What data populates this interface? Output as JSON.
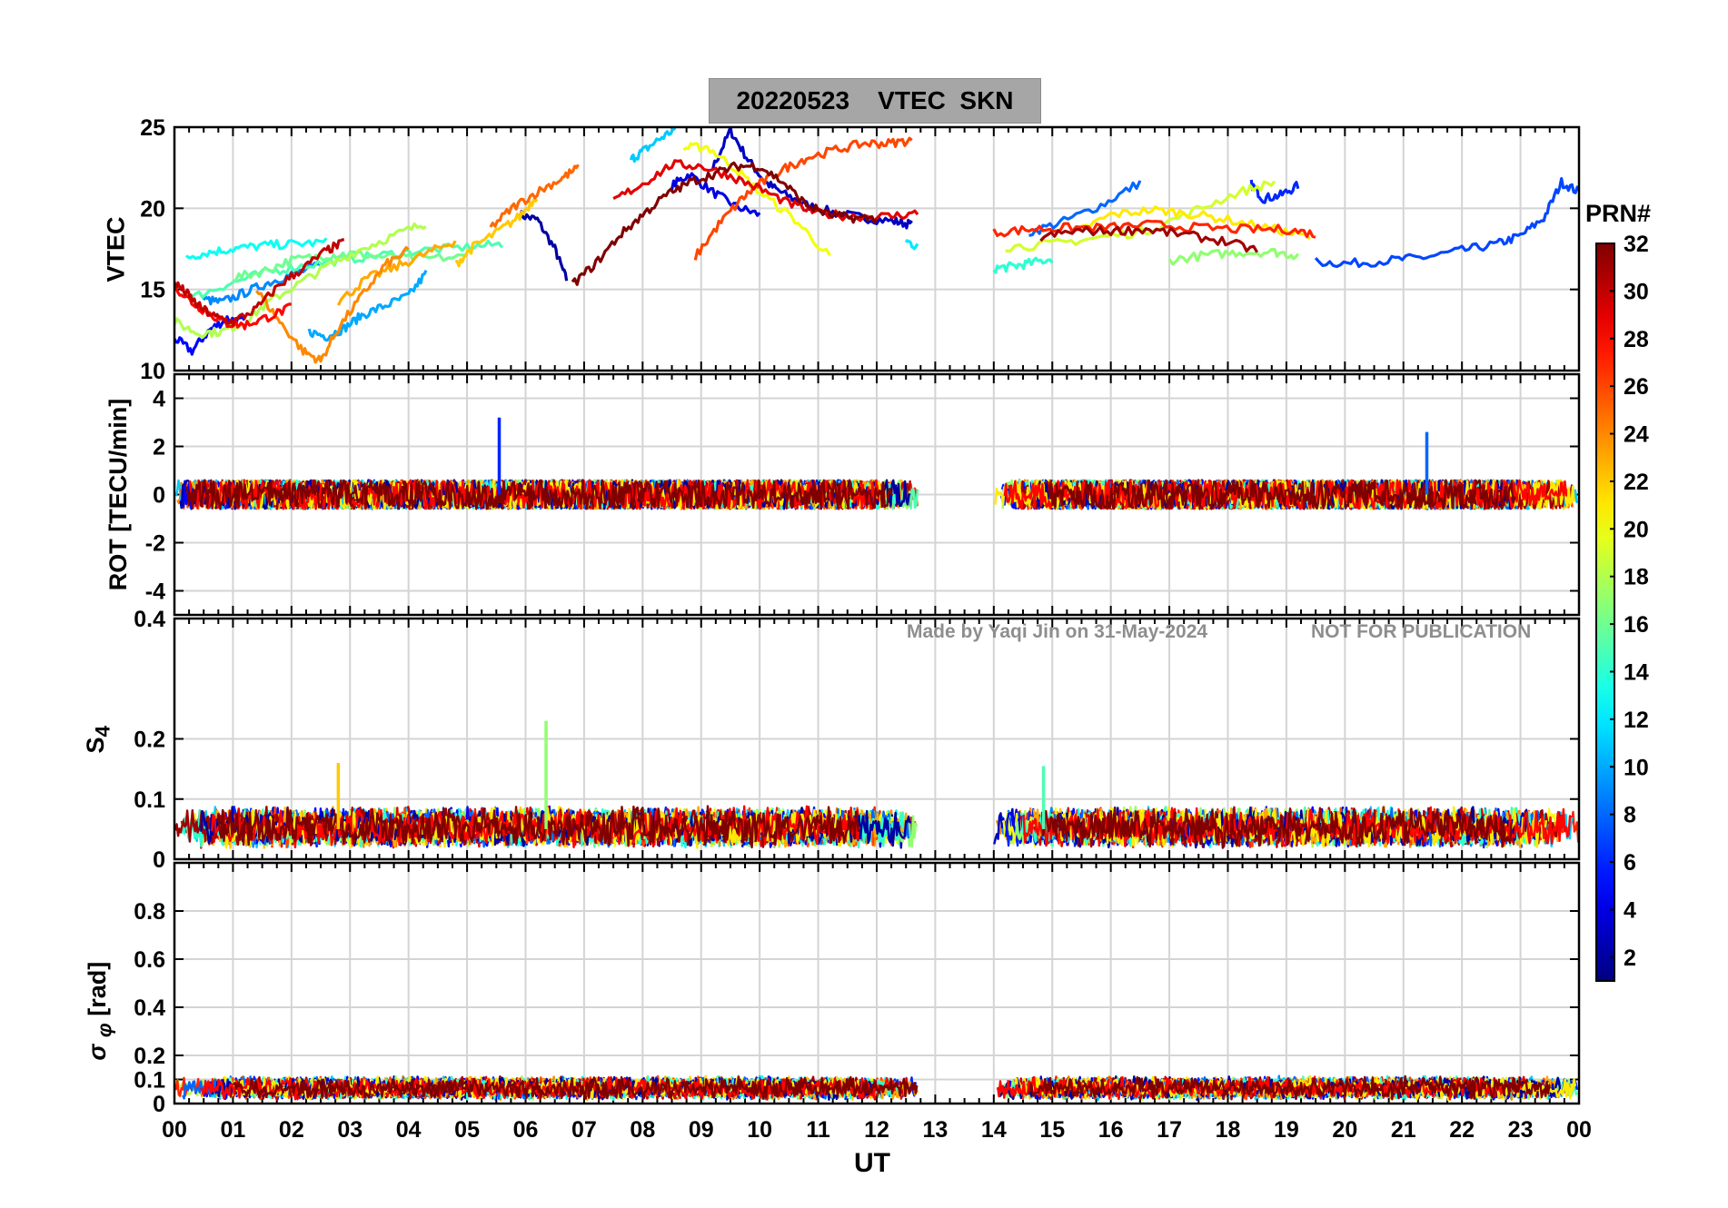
{
  "title": "20220523    VTEC  SKN",
  "xlabel": "UT",
  "colorbar_label": "PRN#",
  "watermark": {
    "author": "Made by Yaqi Jin on 31-May-2024",
    "notice": "NOT FOR PUBLICATION"
  },
  "x_ticks": [
    "00",
    "01",
    "02",
    "03",
    "04",
    "05",
    "06",
    "07",
    "08",
    "09",
    "10",
    "11",
    "12",
    "13",
    "14",
    "15",
    "16",
    "17",
    "18",
    "19",
    "20",
    "21",
    "22",
    "23",
    "00"
  ],
  "colorbar": {
    "ticks": [
      2,
      4,
      6,
      8,
      10,
      12,
      14,
      16,
      18,
      20,
      22,
      24,
      26,
      28,
      30,
      32
    ],
    "range": [
      1,
      32
    ],
    "colormap": "jet"
  },
  "chart_data": [
    {
      "type": "line",
      "panel": "vtec",
      "ylabel": "VTEC",
      "xlim": [
        0,
        24
      ],
      "ylim": [
        10,
        25
      ],
      "yticks": [
        10,
        15,
        20,
        25
      ],
      "grid": true,
      "series": [
        {
          "prn": 2,
          "x": [
            5.9,
            6.2,
            6.5,
            6.7
          ],
          "y": [
            19.6,
            19.3,
            17.5,
            15.6
          ]
        },
        {
          "prn": 3,
          "x": [
            9.2,
            9.5,
            9.8,
            10.1,
            10.4,
            10.8,
            11.3,
            11.8,
            12.3,
            12.6
          ],
          "y": [
            22.5,
            24.8,
            23.0,
            21.6,
            20.9,
            20.2,
            19.7,
            19.4,
            19.2,
            19.0
          ]
        },
        {
          "prn": 4,
          "x": [
            8.5,
            8.8,
            9.2,
            9.6,
            10.0
          ],
          "y": [
            21.4,
            22.1,
            21.0,
            20.1,
            19.6
          ]
        },
        {
          "prn": 5,
          "x": [
            0.0,
            0.3,
            0.6,
            0.9,
            1.2
          ],
          "y": [
            12.0,
            11.2,
            12.5,
            13.2,
            13.0
          ]
        },
        {
          "prn": 6,
          "x": [
            18.4,
            18.6,
            18.9,
            19.2
          ],
          "y": [
            21.5,
            20.6,
            20.8,
            21.4
          ]
        },
        {
          "prn": 7,
          "x": [
            19.5,
            20.1,
            20.8,
            21.4,
            22.0,
            22.6,
            23.0,
            23.4,
            23.7,
            24.0
          ],
          "y": [
            16.7,
            16.6,
            16.8,
            17.0,
            17.4,
            17.8,
            18.3,
            19.4,
            21.6,
            21.0
          ]
        },
        {
          "prn": 8,
          "x": [
            14.6,
            15.2,
            15.9,
            16.5
          ],
          "y": [
            18.5,
            19.2,
            20.3,
            21.6
          ]
        },
        {
          "prn": 9,
          "x": [
            0.5,
            0.8,
            1.2,
            1.6,
            2.0,
            2.5
          ],
          "y": [
            14.4,
            14.2,
            14.8,
            15.4,
            15.9,
            16.5
          ]
        },
        {
          "prn": 10,
          "x": [
            2.3,
            2.6,
            2.9,
            3.2,
            3.6,
            4.0,
            4.3
          ],
          "y": [
            12.4,
            12.1,
            12.6,
            13.4,
            14.0,
            14.6,
            16.0
          ]
        },
        {
          "prn": 11,
          "x": [
            7.8,
            8.0,
            8.3,
            8.6
          ],
          "y": [
            23.0,
            23.5,
            24.3,
            25.0
          ]
        },
        {
          "prn": 12,
          "x": [
            12.5,
            12.7
          ],
          "y": [
            18.0,
            17.6
          ]
        },
        {
          "prn": 13,
          "x": [
            0.2,
            0.6,
            1.0,
            1.5,
            2.0,
            2.6
          ],
          "y": [
            17.0,
            17.3,
            17.5,
            17.7,
            17.8,
            17.9
          ]
        },
        {
          "prn": 14,
          "x": [
            14.0,
            14.3,
            14.6,
            15.0
          ],
          "y": [
            16.3,
            16.4,
            16.6,
            16.9
          ]
        },
        {
          "prn": 15,
          "x": [
            0.3,
            0.9,
            1.5,
            2.1,
            2.8,
            3.5,
            4.2,
            5.0,
            5.6
          ],
          "y": [
            14.5,
            15.3,
            16.0,
            16.4,
            16.8,
            17.1,
            17.4,
            17.6,
            17.8
          ]
        },
        {
          "prn": 16,
          "x": [
            1.0,
            1.5,
            2.0,
            2.6,
            3.0,
            3.6,
            4.2,
            5.0
          ],
          "y": [
            15.7,
            16.1,
            16.8,
            17.1,
            17.2,
            17.0,
            16.9,
            17.0
          ]
        },
        {
          "prn": 17,
          "x": [
            17.0,
            17.6,
            18.2,
            18.8,
            19.2
          ],
          "y": [
            16.8,
            17.1,
            17.3,
            17.3,
            17.1
          ]
        },
        {
          "prn": 18,
          "x": [
            0.0,
            0.4,
            0.8,
            1.2,
            1.6,
            2.1,
            2.6,
            3.2,
            3.8,
            4.3
          ],
          "y": [
            13.0,
            12.3,
            12.4,
            13.0,
            14.2,
            15.3,
            16.4,
            17.5,
            18.4,
            19.1
          ]
        },
        {
          "prn": 19,
          "x": [
            14.2,
            15.0,
            15.8,
            16.6,
            17.4,
            18.2,
            18.8
          ],
          "y": [
            17.6,
            17.8,
            18.2,
            18.6,
            19.8,
            21.0,
            21.6
          ]
        },
        {
          "prn": 20,
          "x": [
            8.7,
            9.1,
            9.6,
            10.0,
            10.6,
            11.2
          ],
          "y": [
            23.7,
            23.8,
            22.4,
            21.0,
            19.3,
            17.0
          ]
        },
        {
          "prn": 21,
          "x": [
            15.4,
            16.0,
            16.7,
            17.3,
            18.0,
            18.8,
            19.4
          ],
          "y": [
            18.5,
            19.6,
            19.9,
            19.7,
            19.3,
            18.7,
            18.2
          ]
        },
        {
          "prn": 22,
          "x": [
            4.8,
            5.1,
            5.5,
            5.9,
            6.2
          ],
          "y": [
            16.5,
            17.6,
            18.5,
            19.5,
            20.8
          ]
        },
        {
          "prn": 23,
          "x": [
            2.8,
            3.3,
            3.8,
            4.3,
            4.8
          ],
          "y": [
            14.2,
            15.7,
            16.4,
            17.2,
            18.0
          ]
        },
        {
          "prn": 24,
          "x": [
            1.4,
            1.8,
            2.2,
            2.5,
            2.8,
            3.2,
            3.6,
            4.0
          ],
          "y": [
            15.0,
            13.0,
            11.2,
            10.6,
            12.6,
            14.6,
            16.5,
            17.4
          ]
        },
        {
          "prn": 25,
          "x": [
            5.4,
            5.8,
            6.2,
            6.6,
            6.9
          ],
          "y": [
            18.8,
            20.1,
            21.0,
            21.8,
            22.5
          ]
        },
        {
          "prn": 26,
          "x": [
            8.9,
            9.3,
            9.7,
            10.0,
            10.4,
            10.8,
            11.3,
            11.8,
            12.2,
            12.6
          ],
          "y": [
            17.0,
            19.0,
            20.6,
            21.5,
            22.4,
            23.1,
            23.6,
            24.0,
            24.0,
            24.2
          ]
        },
        {
          "prn": 27,
          "x": [
            14.0,
            14.6,
            15.2,
            15.9,
            16.7,
            17.5,
            18.3,
            19.0,
            19.5
          ],
          "y": [
            18.5,
            18.7,
            18.8,
            18.8,
            19.0,
            18.8,
            18.7,
            18.7,
            18.4
          ]
        },
        {
          "prn": 28,
          "x": [
            0.0,
            0.3,
            0.6,
            0.9,
            1.2,
            1.6,
            2.0
          ],
          "y": [
            15.2,
            14.2,
            13.5,
            12.9,
            12.8,
            13.3,
            13.9
          ]
        },
        {
          "prn": 29,
          "x": [
            7.5,
            8.0,
            8.5,
            9.0,
            9.5,
            10.0,
            10.5,
            11.0,
            11.6,
            12.2,
            12.7
          ],
          "y": [
            20.5,
            21.5,
            22.7,
            22.6,
            22.0,
            21.2,
            20.3,
            19.7,
            19.5,
            19.5,
            19.7
          ]
        },
        {
          "prn": 30,
          "x": [
            0.0,
            0.2,
            0.4,
            0.7,
            1.0,
            1.4,
            1.8,
            2.2,
            2.6,
            2.9
          ],
          "y": [
            15.4,
            14.8,
            14.0,
            13.3,
            13.0,
            13.8,
            15.3,
            16.3,
            17.4,
            17.9
          ]
        },
        {
          "prn": 31,
          "x": [
            14.8,
            15.4,
            16.0,
            16.6,
            17.2,
            17.9,
            18.5
          ],
          "y": [
            18.2,
            18.6,
            18.6,
            18.7,
            18.4,
            18.0,
            17.4
          ]
        },
        {
          "prn": 32,
          "x": [
            6.8,
            7.2,
            7.6,
            8.0,
            8.4,
            8.8,
            9.2,
            9.6,
            10.0,
            10.4,
            10.8,
            11.2,
            11.6,
            12.0
          ],
          "y": [
            15.3,
            16.6,
            18.3,
            19.6,
            20.8,
            21.6,
            22.1,
            22.6,
            22.6,
            21.6,
            20.2,
            19.6,
            19.4,
            19.4
          ]
        }
      ]
    },
    {
      "type": "line",
      "panel": "rot",
      "ylabel": "ROT [TECU/min]",
      "xlim": [
        0,
        24
      ],
      "ylim": [
        -5,
        5
      ],
      "yticks": [
        -4,
        -2,
        0,
        2,
        4
      ],
      "grid": true,
      "spikes": [
        {
          "prn": 6,
          "x": 5.55,
          "y": 3.2
        },
        {
          "prn": 8,
          "x": 21.4,
          "y": 2.6
        }
      ],
      "noise_band": {
        "center": 0.0,
        "amplitude": 0.6
      }
    },
    {
      "type": "line",
      "panel": "s4",
      "ylabel": "S4",
      "xlim": [
        0,
        24
      ],
      "ylim": [
        0,
        0.4
      ],
      "yticks": [
        0,
        0.1,
        0.2,
        0.4
      ],
      "grid": true,
      "spikes": [
        {
          "prn": 17,
          "x": 6.35,
          "y": 0.23
        },
        {
          "prn": 22,
          "x": 2.8,
          "y": 0.16
        },
        {
          "prn": 15,
          "x": 14.85,
          "y": 0.155
        }
      ],
      "noise_band": {
        "center": 0.05,
        "amplitude": 0.035
      }
    },
    {
      "type": "line",
      "panel": "sigma_phi",
      "ylabel": "σ φ [rad]",
      "xlim": [
        0,
        24
      ],
      "ylim": [
        0,
        1
      ],
      "yticks": [
        0,
        0.1,
        0.2,
        0.4,
        0.6,
        0.8
      ],
      "grid": true,
      "noise_band": {
        "center": 0.06,
        "amplitude": 0.05
      }
    }
  ]
}
